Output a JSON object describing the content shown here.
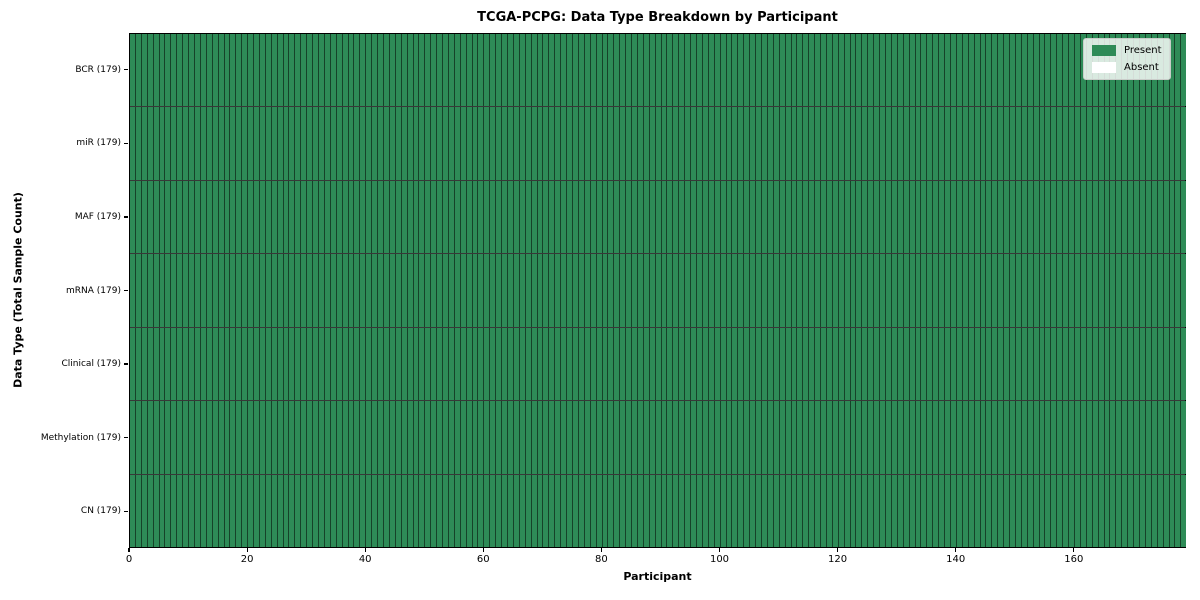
{
  "chart_data": {
    "type": "heatmap",
    "title": "TCGA-PCPG: Data Type Breakdown by Participant",
    "xlabel": "Participant",
    "ylabel": "Data Type (Total Sample Count)",
    "n_participants": 179,
    "xlim": [
      0,
      179
    ],
    "x_ticks": [
      0,
      20,
      40,
      60,
      80,
      100,
      120,
      140,
      160
    ],
    "grid": false,
    "rows": [
      {
        "label": "BCR (179)",
        "data_type": "BCR",
        "total_samples": 179,
        "present_count": 179,
        "absent_count": 0
      },
      {
        "label": "miR (179)",
        "data_type": "miR",
        "total_samples": 179,
        "present_count": 179,
        "absent_count": 0
      },
      {
        "label": "MAF (179)",
        "data_type": "MAF",
        "total_samples": 179,
        "present_count": 179,
        "absent_count": 0
      },
      {
        "label": "mRNA (179)",
        "data_type": "mRNA",
        "total_samples": 179,
        "present_count": 179,
        "absent_count": 0
      },
      {
        "label": "Clinical (179)",
        "data_type": "Clinical",
        "total_samples": 179,
        "present_count": 179,
        "absent_count": 0
      },
      {
        "label": "Methylation (179)",
        "data_type": "Methylation",
        "total_samples": 179,
        "present_count": 179,
        "absent_count": 0
      },
      {
        "label": "CN (179)",
        "data_type": "CN",
        "total_samples": 179,
        "present_count": 179,
        "absent_count": 0
      }
    ],
    "legend": {
      "position": "upper right",
      "entries": [
        {
          "label": "Present",
          "color": "#2e8b57"
        },
        {
          "label": "Absent",
          "color": "#ffffff"
        }
      ]
    },
    "colors": {
      "present": "#2e8b57",
      "absent": "#ffffff",
      "cell_edge": "#000000",
      "frame": "#000000"
    }
  }
}
